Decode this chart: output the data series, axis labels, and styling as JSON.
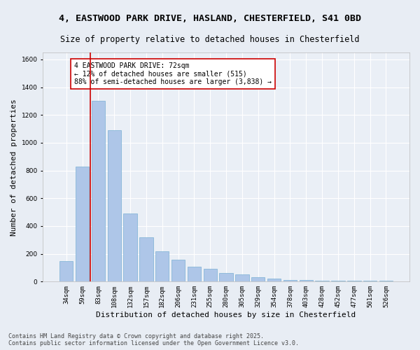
{
  "title_line1": "4, EASTWOOD PARK DRIVE, HASLAND, CHESTERFIELD, S41 0BD",
  "title_line2": "Size of property relative to detached houses in Chesterfield",
  "xlabel": "Distribution of detached houses by size in Chesterfield",
  "ylabel": "Number of detached properties",
  "categories": [
    "34sqm",
    "59sqm",
    "83sqm",
    "108sqm",
    "132sqm",
    "157sqm",
    "182sqm",
    "206sqm",
    "231sqm",
    "255sqm",
    "280sqm",
    "305sqm",
    "329sqm",
    "354sqm",
    "378sqm",
    "403sqm",
    "428sqm",
    "452sqm",
    "477sqm",
    "501sqm",
    "526sqm"
  ],
  "values": [
    150,
    830,
    1300,
    1090,
    490,
    320,
    220,
    160,
    110,
    90,
    60,
    50,
    30,
    20,
    10,
    10,
    5,
    5,
    5,
    5,
    5
  ],
  "bar_color": "#aec6e8",
  "bar_edge_color": "#7aafd4",
  "vline_color": "#cc0000",
  "annotation_text": "4 EASTWOOD PARK DRIVE: 72sqm\n← 12% of detached houses are smaller (515)\n88% of semi-detached houses are larger (3,838) →",
  "annotation_box_color": "#ffffff",
  "annotation_border_color": "#cc0000",
  "ylim": [
    0,
    1650
  ],
  "yticks": [
    0,
    200,
    400,
    600,
    800,
    1000,
    1200,
    1400,
    1600
  ],
  "bg_color": "#e8edf4",
  "plot_bg_color": "#eaeff6",
  "grid_color": "#ffffff",
  "footnote": "Contains HM Land Registry data © Crown copyright and database right 2025.\nContains public sector information licensed under the Open Government Licence v3.0.",
  "title_fontsize": 9.5,
  "subtitle_fontsize": 8.5,
  "axis_label_fontsize": 8,
  "tick_fontsize": 6.5,
  "annotation_fontsize": 7,
  "footnote_fontsize": 6
}
